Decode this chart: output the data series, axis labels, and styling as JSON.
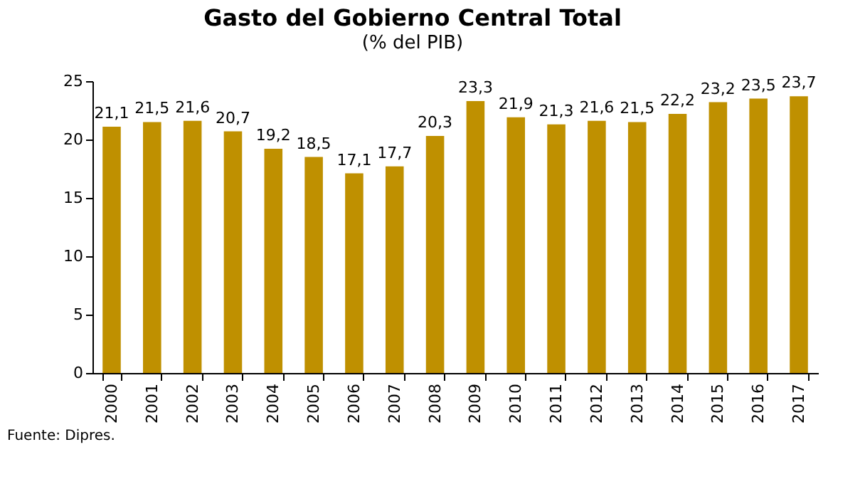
{
  "chart_data": {
    "type": "bar",
    "title": "Gasto del Gobierno Central Total",
    "subtitle": "(% del PIB)",
    "categories": [
      "2000",
      "2001",
      "2002",
      "2003",
      "2004",
      "2005",
      "2006",
      "2007",
      "2008",
      "2009",
      "2010",
      "2011",
      "2012",
      "2013",
      "2014",
      "2015",
      "2016",
      "2017"
    ],
    "values": [
      21.1,
      21.5,
      21.6,
      20.7,
      19.2,
      18.5,
      17.1,
      17.7,
      20.3,
      23.3,
      21.9,
      21.3,
      21.6,
      21.5,
      22.2,
      23.2,
      23.5,
      23.7
    ],
    "value_labels": [
      "21,1",
      "21,5",
      "21,6",
      "20,7",
      "19,2",
      "18,5",
      "17,1",
      "17,7",
      "20,3",
      "23,3",
      "21,9",
      "21,3",
      "21,6",
      "21,5",
      "22,2",
      "23,2",
      "23,5",
      "23,7"
    ],
    "color": "#bf9000",
    "ylim": [
      0,
      25
    ],
    "yticks": [
      0,
      5,
      10,
      15,
      20,
      25
    ],
    "grid": false,
    "annotations": [
      "Fuente: Dipres."
    ]
  }
}
